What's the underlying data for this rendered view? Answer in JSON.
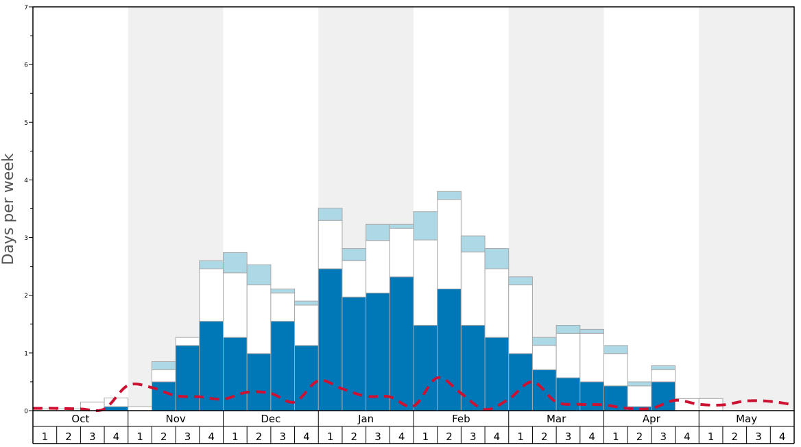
{
  "chart_data": {
    "type": "bar",
    "ylabel": "Days per week",
    "ylim": [
      0,
      7
    ],
    "y_ticks": [
      "0",
      "1",
      "2",
      "3",
      "4",
      "5",
      "6",
      "7"
    ],
    "months": [
      "Oct",
      "Nov",
      "Dec",
      "Jan",
      "Feb",
      "Mar",
      "Apr",
      "May"
    ],
    "week_labels": [
      "1",
      "2",
      "3",
      "4"
    ],
    "stacked": true,
    "series": [
      {
        "values": [
          0,
          0,
          0,
          0.07,
          0,
          0.5,
          1.13,
          1.55,
          1.27,
          0.99,
          1.55,
          1.13,
          2.46,
          1.97,
          2.04,
          2.32,
          1.48,
          2.11,
          1.48,
          1.27,
          0.99,
          0.71,
          0.57,
          0.5,
          0.43,
          0.07,
          0.5,
          0,
          0,
          0,
          0,
          0
        ]
      },
      {
        "values": [
          0.03,
          0.03,
          0.15,
          0.15,
          0.07,
          0.21,
          0.14,
          0.91,
          1.12,
          1.19,
          0.49,
          0.7,
          0.84,
          0.63,
          0.91,
          0.84,
          1.48,
          1.55,
          1.27,
          1.19,
          1.19,
          0.42,
          0.77,
          0.84,
          0.56,
          0.36,
          0.21,
          0.21,
          0.21,
          0,
          0,
          0
        ]
      },
      {
        "values": [
          0,
          0,
          0,
          0,
          0,
          0.14,
          0,
          0.14,
          0.35,
          0.35,
          0.07,
          0.07,
          0.21,
          0.21,
          0.28,
          0.07,
          0.49,
          0.14,
          0.28,
          0.35,
          0.14,
          0.14,
          0.14,
          0.07,
          0.14,
          0.07,
          0.07,
          0,
          0,
          0,
          0,
          0
        ]
      }
    ],
    "line": {
      "style": "dashed",
      "values": [
        0.04,
        0.04,
        0.03,
        0.03,
        0.44,
        0.4,
        0.26,
        0.24,
        0.2,
        0.32,
        0.3,
        0.15,
        0.52,
        0.38,
        0.25,
        0.24,
        0.08,
        0.57,
        0.3,
        0.02,
        0.2,
        0.5,
        0.15,
        0.11,
        0.1,
        0.04,
        0.04,
        0.18,
        0.11,
        0.1,
        0.17,
        0.16,
        0.1
      ]
    },
    "colors": {
      "series1": "#0077b6",
      "series2": "#ffffff",
      "series3": "#add8e6",
      "line": "#cc1133",
      "shade": "#f0f0f0",
      "bar_stroke": "#a8a8a8",
      "frame": "#000000",
      "axis_label": "#555555"
    },
    "grid": false,
    "legend": false
  }
}
